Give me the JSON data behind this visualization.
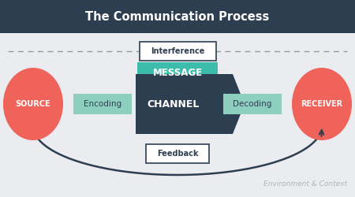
{
  "title": "The Communication Process",
  "title_bar_color": "#2d3e50",
  "title_text_color": "#ffffff",
  "bg_color": "#eaecef",
  "source_label": "SOURCE",
  "receiver_label": "RECEIVER",
  "circle_color": "#f0635a",
  "circle_text_color": "#ffffff",
  "message_label": "MESSAGE",
  "message_bg": "#3dbcac",
  "message_text_color": "#ffffff",
  "channel_label": "CHANNEL",
  "channel_arrow_color": "#2d3e50",
  "channel_text_color": "#ffffff",
  "encoding_label": "Encoding",
  "decoding_label": "Decoding",
  "encode_decode_bg": "#8dcfbf",
  "encode_decode_text": "#2d3e50",
  "interference_label": "Interference",
  "interference_bg": "#ffffff",
  "interference_border": "#2d3e50",
  "interference_text": "#2d3e50",
  "feedback_label": "Feedback",
  "feedback_bg": "#ffffff",
  "feedback_border": "#2d3e50",
  "feedback_text": "#2d3e50",
  "env_label": "Environment & Context",
  "env_text_color": "#b0b4bb",
  "dashed_line_color": "#999999",
  "arc_color": "#2d3e50"
}
